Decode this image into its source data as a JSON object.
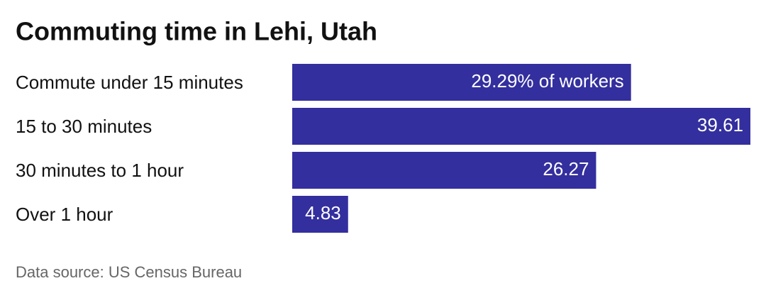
{
  "chart_data": {
    "type": "bar",
    "orientation": "horizontal",
    "title": "Commuting time in Lehi, Utah",
    "categories": [
      "Commute under 15 minutes",
      "15 to 30 minutes",
      "30 minutes to 1 hour",
      "Over 1 hour"
    ],
    "values": [
      29.29,
      39.61,
      26.27,
      4.83
    ],
    "value_labels": [
      "29.29% of workers",
      "39.61",
      "26.27",
      "4.83"
    ],
    "color": "#332f9e",
    "source": "Data source: US Census Bureau"
  }
}
